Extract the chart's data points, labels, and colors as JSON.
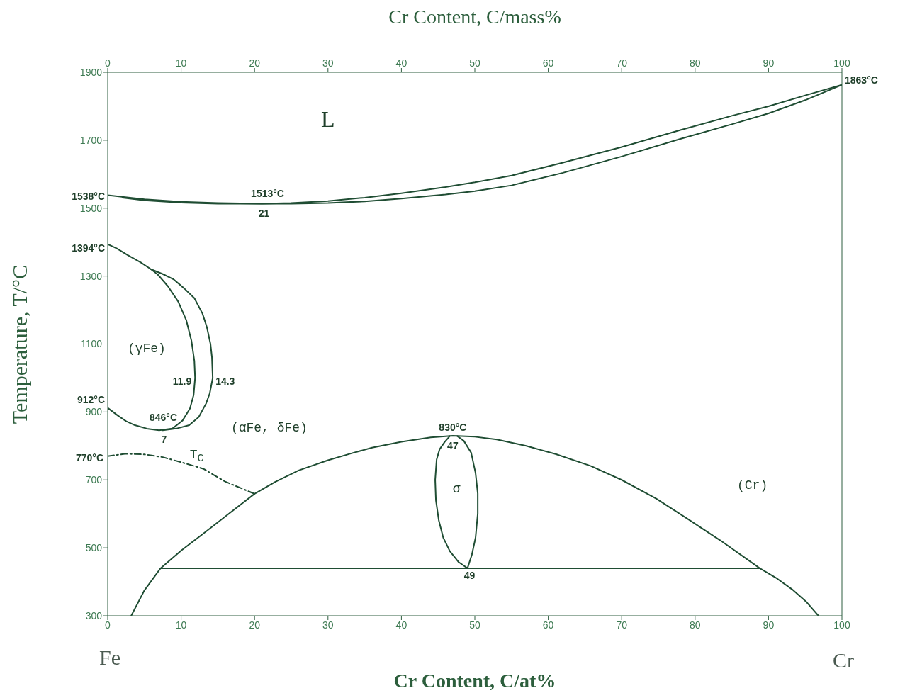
{
  "chart_data": {
    "type": "line",
    "xlabel": "Cr Content, C/at%",
    "x2label": "Cr Content, C/mass%",
    "ylabel": "Temperature, T/°C",
    "xlim": [
      0,
      100
    ],
    "xticks": [
      0,
      10,
      20,
      30,
      40,
      50,
      60,
      70,
      80,
      90,
      100
    ],
    "x2lim": [
      0,
      100
    ],
    "x2ticks": [
      0,
      10,
      20,
      30,
      40,
      50,
      60,
      70,
      80,
      90,
      100
    ],
    "ylim": [
      300,
      1900
    ],
    "yticks": [
      300,
      500,
      700,
      900,
      1100,
      1300,
      1500,
      1700,
      1900
    ],
    "series": [
      {
        "color": "#1f4d33",
        "x": [
          0,
          5,
          10,
          15,
          21,
          25,
          30,
          35,
          40,
          46,
          50,
          55,
          62,
          70,
          78,
          85,
          90,
          95,
          100
        ],
        "values": [
          1538,
          1526,
          1519,
          1515,
          1513,
          1515,
          1521,
          1531,
          1544,
          1562,
          1576,
          1596,
          1634,
          1680,
          1730,
          1772,
          1800,
          1832,
          1863
        ]
      },
      {
        "color": "#1f4d33",
        "x": [
          2,
          5,
          10,
          15,
          21,
          25,
          30,
          35,
          40,
          46,
          50,
          55,
          62,
          70,
          78,
          85,
          90,
          95,
          100
        ],
        "values": [
          1531,
          1523,
          1516,
          1513,
          1513,
          1513,
          1515,
          1520,
          1528,
          1540,
          1550,
          1567,
          1604,
          1652,
          1704,
          1747,
          1779,
          1818,
          1863
        ]
      },
      {
        "color": "#1f4d33",
        "x": [
          0,
          1.4,
          2.5,
          3.7,
          5.5,
          7,
          8.8,
          10.2,
          11.2,
          11.7,
          11.9,
          11.8,
          11.4,
          10.7,
          9.6,
          8.2,
          6.8,
          5.9,
          4.5,
          2.7,
          1.2,
          0
        ],
        "values": [
          912,
          889,
          873,
          861,
          850,
          846,
          851,
          875,
          910,
          950,
          1000,
          1050,
          1110,
          1170,
          1225,
          1270,
          1305,
          1320,
          1340,
          1362,
          1382,
          1394
        ]
      },
      {
        "color": "#1f4d33",
        "x": [
          7.5,
          9.5,
          11.1,
          12.4,
          13.4,
          13.9,
          14.3,
          14.2,
          14,
          13.5,
          12.9,
          11.8,
          10.4,
          9,
          7.5,
          5.9
        ],
        "values": [
          846,
          852,
          861,
          885,
          925,
          955,
          1000,
          1060,
          1100,
          1150,
          1190,
          1235,
          1264,
          1290,
          1306,
          1320
        ]
      },
      {
        "name": "T$_{C}$",
        "color": "#1f4d33",
        "line_style": "dashed",
        "x": [
          0,
          2.5,
          5,
          7.5,
          10,
          13,
          16,
          20
        ],
        "values": [
          770,
          777,
          775,
          767,
          752,
          733,
          695,
          659
        ]
      },
      {
        "color": "#1f4d33",
        "x": [
          3.2,
          5,
          7.2,
          10,
          12.9,
          16,
          20,
          22.8,
          26,
          30,
          33,
          36,
          40,
          44,
          47,
          50,
          53,
          57,
          61,
          65.8,
          70,
          74.7,
          79,
          83.5,
          88.8,
          91,
          93.2,
          95.2,
          96.8
        ],
        "values": [
          300,
          375,
          440,
          492,
          540,
          592,
          659,
          694,
          728,
          758,
          777,
          795,
          812,
          825,
          830,
          827,
          819,
          800,
          776,
          741,
          700,
          645,
          585,
          521,
          440,
          412,
          378,
          340,
          300
        ]
      },
      {
        "color": "#1f4d33",
        "x": [
          7.2,
          88.8
        ],
        "values": [
          440,
          440
        ]
      },
      {
        "color": "#1f4d33",
        "x": [
          46.6,
          45.9,
          45.2,
          44.8,
          44.6,
          44.7,
          45.1,
          45.7,
          46.6,
          47.8,
          49,
          49.6,
          50.1,
          50.4,
          50.4,
          50.1,
          49.5,
          48.5,
          47.6
        ],
        "values": [
          829,
          812,
          790,
          760,
          700,
          640,
          580,
          530,
          490,
          458,
          440,
          480,
          530,
          600,
          660,
          720,
          780,
          815,
          829
        ]
      }
    ],
    "annotations": [
      "L",
      {
        "text": "1538°C",
        "x": 0,
        "y": 1538
      },
      {
        "text": "1513°C",
        "x": 21,
        "y": 1513
      },
      {
        "text": "21",
        "x": 21,
        "y": 1513
      },
      {
        "text": "1863°C",
        "x": 100,
        "y": 1863
      },
      {
        "text": "1394°C",
        "x": 0,
        "y": 1394
      },
      "(γFe)",
      {
        "text": "11.9",
        "x": 11.9,
        "y": 1000
      },
      {
        "text": "14.3",
        "x": 14.3,
        "y": 1000
      },
      {
        "text": "912°C",
        "x": 0,
        "y": 912
      },
      {
        "text": "846°C",
        "x": 7,
        "y": 846
      },
      {
        "text": "7",
        "x": 7,
        "y": 846
      },
      "(αFe, δFe)",
      {
        "text": "830°C",
        "x": 47,
        "y": 830
      },
      {
        "text": "47",
        "x": 47,
        "y": 830
      },
      {
        "text": "770°C",
        "x": 0,
        "y": 770
      },
      "σ",
      "(Cr)",
      {
        "text": "49",
        "x": 49,
        "y": 440
      },
      "Fe",
      "Cr"
    ]
  }
}
